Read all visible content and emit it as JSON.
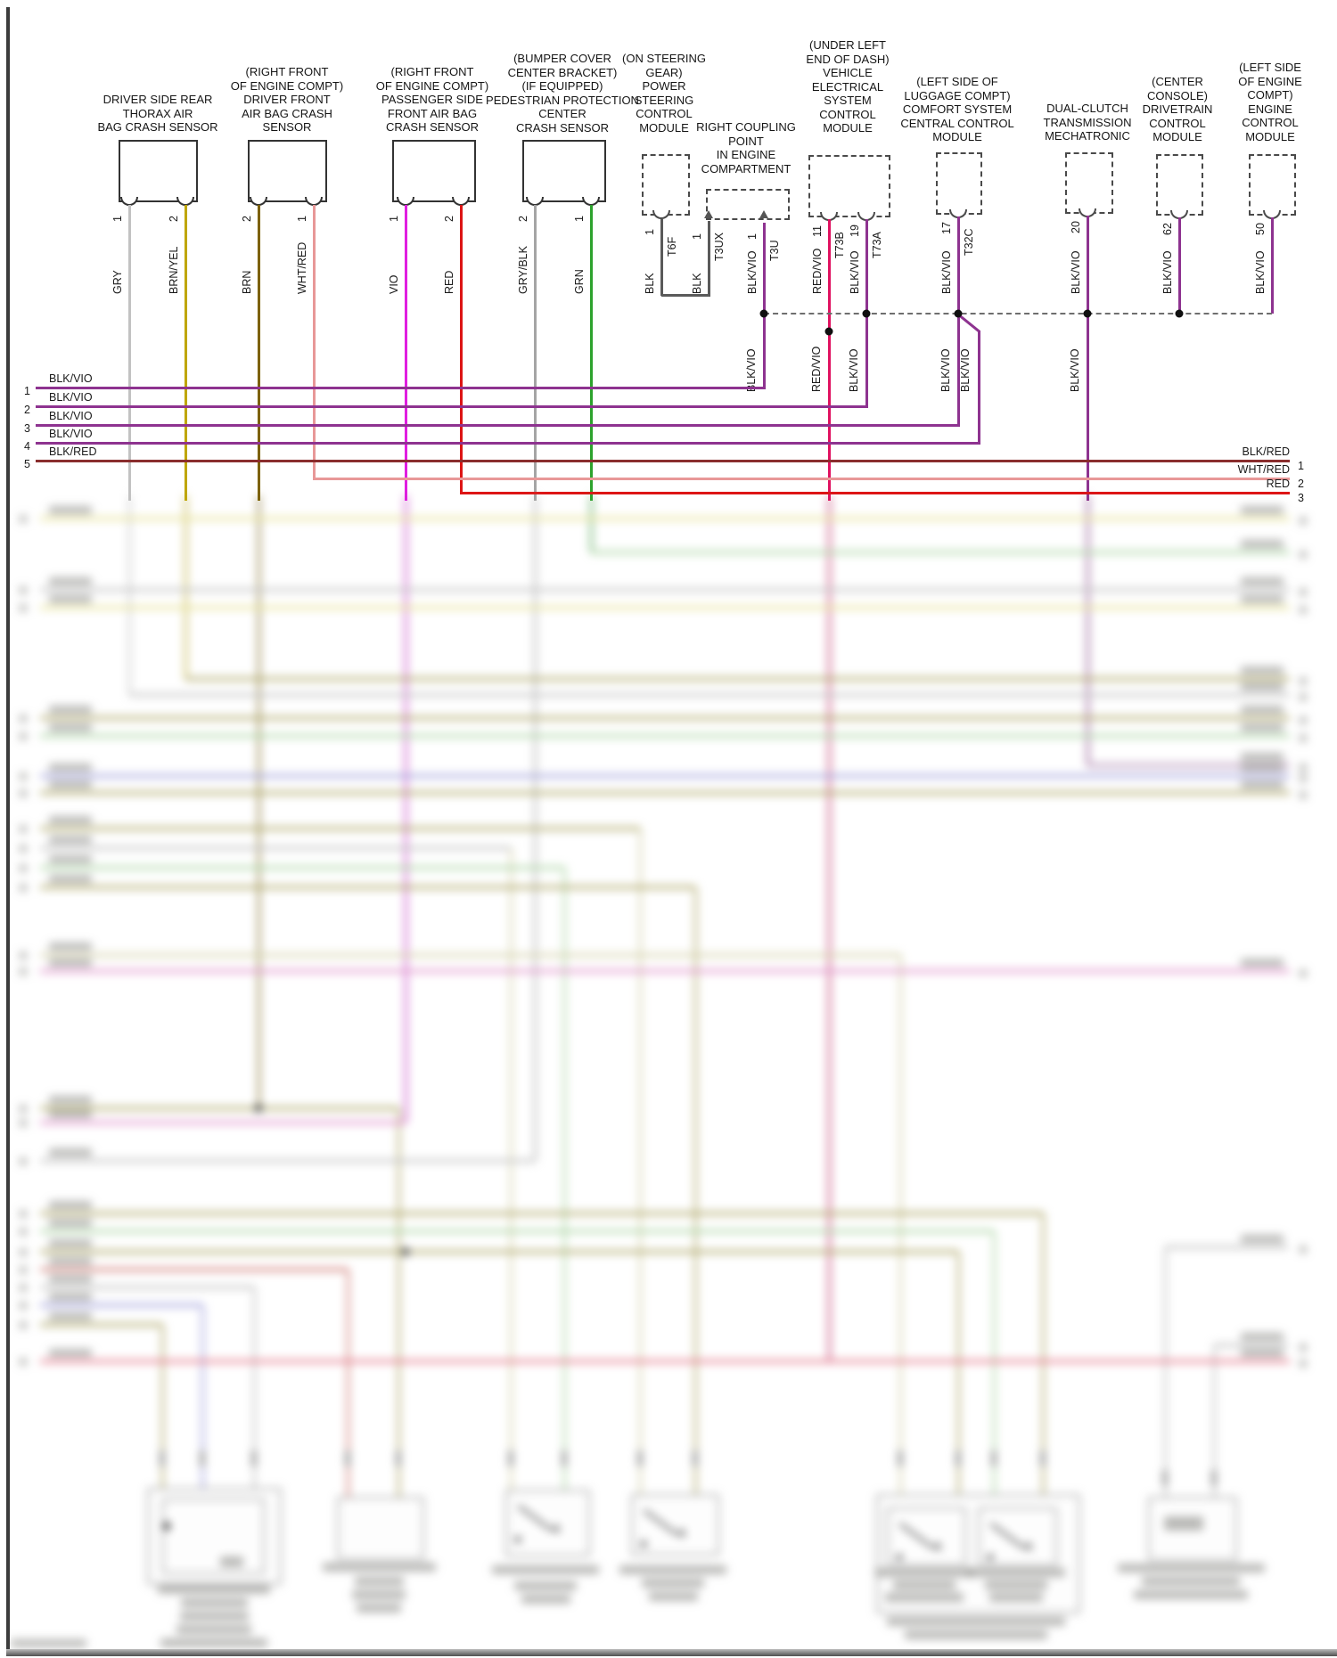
{
  "colors": {
    "GRY": "#c2c2c2",
    "BRN_YEL": "#bfa600",
    "BRN": "#7d6200",
    "WHT_RED": "#e89898",
    "VIO": "#e01ee0",
    "RED": "#dd1515",
    "GRY_BLK": "#a5a5a5",
    "GRN": "#2da32d",
    "BLK": "#5a5a5a",
    "BLK_VIO": "#8e3390",
    "RED_VIO": "#e0115f",
    "BLK_RED": "#8a2d2d",
    "blur_yellow": "#e6df6e",
    "blur_olive": "#a59a3a",
    "blur_pale_olive": "#cfca8f",
    "blur_green": "#95d389",
    "blur_blue": "#8e8eea",
    "blur_bright_pink": "#ff5f7a",
    "blur_pink": "#f07bd0",
    "blur_red": "#e06055",
    "blur_grey": "#b9b9b9",
    "blur_purple": "#b07ab5"
  },
  "modules": [
    {
      "lines": [
        "DRIVER SIDE REAR",
        "THORAX AIR",
        "BAG CRASH SENSOR"
      ],
      "pins": [
        {
          "num": "1",
          "wire": "GRY"
        },
        {
          "num": "2",
          "wire": "BRN/YEL"
        }
      ]
    },
    {
      "lines": [
        "(RIGHT FRONT",
        "OF ENGINE COMPT)",
        "DRIVER FRONT",
        "AIR BAG CRASH",
        "SENSOR"
      ],
      "pins": [
        {
          "num": "2",
          "wire": "BRN"
        },
        {
          "num": "1",
          "wire": "WHT/RED"
        }
      ]
    },
    {
      "lines": [
        "(RIGHT FRONT",
        "OF ENGINE COMPT)",
        "PASSENGER SIDE",
        "FRONT AIR BAG",
        "CRASH SENSOR"
      ],
      "pins": [
        {
          "num": "1",
          "wire": "VIO"
        },
        {
          "num": "2",
          "wire": "RED"
        }
      ]
    },
    {
      "lines": [
        "(BUMPER COVER",
        "CENTER BRACKET)",
        "(IF EQUIPPED)",
        "PEDESTRIAN PROTECTION",
        "CENTER",
        "CRASH SENSOR"
      ],
      "pins": [
        {
          "num": "2",
          "wire": "GRY/BLK"
        },
        {
          "num": "1",
          "wire": "GRN"
        }
      ]
    },
    {
      "lines": [
        "(ON STEERING",
        "GEAR)",
        "POWER",
        "STEERING",
        "CONTROL",
        "MODULE"
      ],
      "pins": [
        {
          "num": "1",
          "wire": "BLK",
          "conn": "T6F"
        }
      ]
    },
    {
      "lines": [
        "RIGHT COUPLING",
        "POINT",
        "IN ENGINE",
        "COMPARTMENT"
      ],
      "pins": [
        {
          "num": "1",
          "wire": "BLK",
          "conn": "T3UX"
        },
        {
          "num": "1",
          "wire": "BLK/VIO",
          "conn": "T3U"
        }
      ]
    },
    {
      "lines": [
        "(UNDER LEFT",
        "END OF DASH)",
        "VEHICLE",
        "ELECTRICAL",
        "SYSTEM",
        "CONTROL",
        "MODULE"
      ],
      "pins": [
        {
          "num": "11",
          "wire": "RED/VIO",
          "conn": "T73B"
        },
        {
          "num": "19",
          "wire": "BLK/VIO",
          "conn": "T73A"
        }
      ]
    },
    {
      "lines": [
        "(LEFT SIDE OF",
        "LUGGAGE COMPT)",
        "COMFORT SYSTEM",
        "CENTRAL CONTROL",
        "MODULE"
      ],
      "pins": [
        {
          "num": "17",
          "wire": "BLK/VIO",
          "conn": "T32C"
        }
      ]
    },
    {
      "lines": [
        "DUAL-CLUTCH",
        "TRANSMISSION",
        "MECHATRONIC"
      ],
      "pins": [
        {
          "num": "20",
          "wire": "BLK/VIO"
        }
      ]
    },
    {
      "lines": [
        "(CENTER",
        "CONSOLE)",
        "DRIVETRAIN",
        "CONTROL",
        "MODULE"
      ],
      "pins": [
        {
          "num": "62",
          "wire": "BLK/VIO"
        }
      ]
    },
    {
      "lines": [
        "(LEFT SIDE",
        "OF ENGINE",
        "COMPT)",
        "ENGINE",
        "CONTROL",
        "MODULE"
      ],
      "pins": [
        {
          "num": "50",
          "wire": "BLK/VIO"
        }
      ]
    }
  ],
  "bus_labels_below": [
    "BLK/VIO",
    "RED/VIO",
    "BLK/VIO",
    "BLK/VIO",
    "BLK/VIO",
    "BLK/VIO"
  ],
  "left_rows": [
    {
      "num": "1",
      "label": "BLK/VIO"
    },
    {
      "num": "2",
      "label": "BLK/VIO"
    },
    {
      "num": "3",
      "label": "BLK/VIO"
    },
    {
      "num": "4",
      "label": "BLK/VIO"
    },
    {
      "num": "5",
      "label": "BLK/RED"
    }
  ],
  "right_rows": [
    {
      "num": "1",
      "label": "BLK/RED"
    },
    {
      "num": "2",
      "label": "WHT/RED"
    },
    {
      "num": "3",
      "label": "RED"
    }
  ]
}
